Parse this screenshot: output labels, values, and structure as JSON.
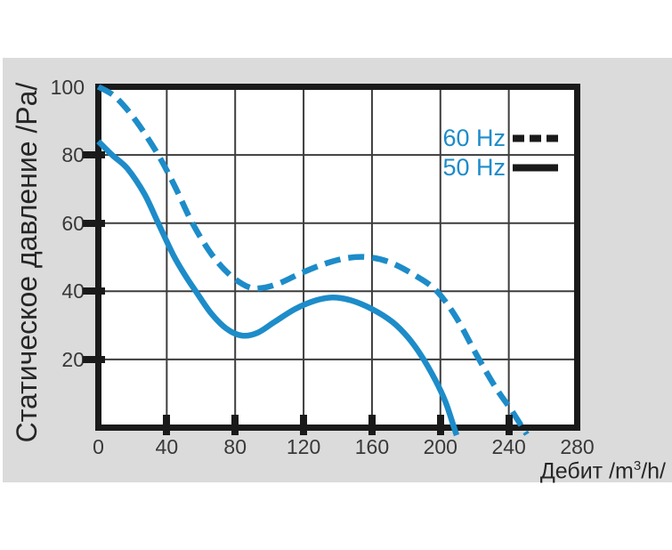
{
  "chart_data": {
    "type": "line",
    "title": "",
    "xlabel": "Дебит /m³/h/",
    "xlabel_parts": {
      "pre": "Дебит /m",
      "sup": "3",
      "post": "/h/"
    },
    "ylabel": "Статическое давление /Pa/",
    "xlim": [
      0,
      280
    ],
    "ylim": [
      0,
      100
    ],
    "x_ticks": [
      0,
      40,
      80,
      120,
      160,
      200,
      240,
      280
    ],
    "y_ticks": [
      100,
      80,
      60,
      40,
      20
    ],
    "grid": true,
    "legend_position": "top-right",
    "colors": {
      "curve_blue": "#1d8cc9",
      "axis_black": "#1a1a1a",
      "grid_gray": "#3d3d3d",
      "panel_gray": "#dbdbdb",
      "tick_text": "#383838"
    },
    "legend": [
      {
        "label": "60 Hz",
        "line_style": "dashed"
      },
      {
        "label": "50 Hz",
        "line_style": "solid"
      }
    ],
    "series": [
      {
        "name": "60 Hz",
        "style": "dashed",
        "color": "#1d8cc9",
        "points": [
          [
            0,
            100
          ],
          [
            10,
            97
          ],
          [
            22,
            90
          ],
          [
            35,
            80
          ],
          [
            45,
            70.5
          ],
          [
            55,
            60
          ],
          [
            66,
            51
          ],
          [
            77,
            44.8
          ],
          [
            88,
            41.2
          ],
          [
            96,
            41
          ],
          [
            106,
            42.4
          ],
          [
            118,
            45.2
          ],
          [
            132,
            48
          ],
          [
            146,
            49.8
          ],
          [
            158,
            50
          ],
          [
            170,
            48.6
          ],
          [
            183,
            45.3
          ],
          [
            197,
            40.5
          ],
          [
            209,
            32.5
          ],
          [
            221,
            21.5
          ],
          [
            232,
            12
          ],
          [
            241,
            5.5
          ],
          [
            248,
            0
          ]
        ]
      },
      {
        "name": "50 Hz",
        "style": "solid",
        "color": "#1d8cc9",
        "points": [
          [
            0,
            84
          ],
          [
            8,
            80
          ],
          [
            17,
            76
          ],
          [
            27,
            68.5
          ],
          [
            35,
            60
          ],
          [
            44,
            50.5
          ],
          [
            51,
            44.5
          ],
          [
            57,
            40
          ],
          [
            66,
            33.5
          ],
          [
            75,
            29
          ],
          [
            84,
            27
          ],
          [
            93,
            27.8
          ],
          [
            103,
            31
          ],
          [
            115,
            34.8
          ],
          [
            127,
            37.3
          ],
          [
            137,
            38.2
          ],
          [
            148,
            37.3
          ],
          [
            160,
            34.8
          ],
          [
            172,
            31
          ],
          [
            181,
            26.5
          ],
          [
            189,
            21
          ],
          [
            197,
            14
          ],
          [
            203,
            7.5
          ],
          [
            208,
            0
          ]
        ]
      }
    ]
  }
}
